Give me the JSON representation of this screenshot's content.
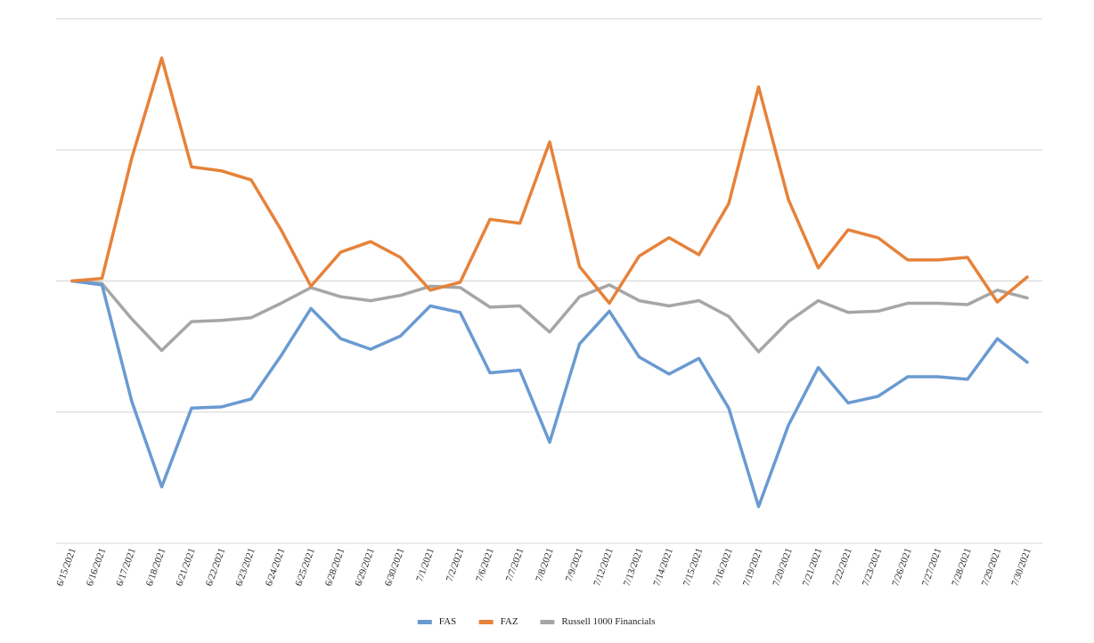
{
  "chart_data": {
    "type": "line",
    "title": "",
    "xlabel": "",
    "ylabel": "",
    "ylim": [
      -2,
      2
    ],
    "grid": true,
    "legend_position": "bottom",
    "categories": [
      "6/15/2021",
      "6/16/2021",
      "6/17/2021",
      "6/18/2021",
      "6/21/2021",
      "6/22/2021",
      "6/23/2021",
      "6/24/2021",
      "6/25/2021",
      "6/28/2021",
      "6/29/2021",
      "6/30/2021",
      "7/1/2021",
      "7/2/2021",
      "7/6/2021",
      "7/7/2021",
      "7/8/2021",
      "7/9/2021",
      "7/12/2021",
      "7/13/2021",
      "7/14/2021",
      "7/15/2021",
      "7/16/2021",
      "7/19/2021",
      "7/20/2021",
      "7/21/2021",
      "7/22/2021",
      "7/23/2021",
      "7/26/2021",
      "7/27/2021",
      "7/28/2021",
      "7/29/2021",
      "7/30/2021"
    ],
    "series": [
      {
        "name": "FAS",
        "color": "#6a9ad1",
        "values": [
          0.0,
          -0.03,
          -0.92,
          -1.57,
          -0.97,
          -0.96,
          -0.9,
          -0.57,
          -0.21,
          -0.44,
          -0.52,
          -0.42,
          -0.19,
          -0.24,
          -0.7,
          -0.68,
          -1.23,
          -0.48,
          -0.23,
          -0.58,
          -0.71,
          -0.59,
          -0.97,
          -1.72,
          -1.1,
          -0.66,
          -0.93,
          -0.88,
          -0.73,
          -0.73,
          -0.75,
          -0.44,
          -0.62
        ]
      },
      {
        "name": "FAZ",
        "color": "#e6823a",
        "values": [
          0.0,
          0.02,
          0.94,
          1.7,
          0.87,
          0.84,
          0.77,
          0.39,
          -0.04,
          0.22,
          0.3,
          0.18,
          -0.07,
          -0.01,
          0.47,
          0.44,
          1.06,
          0.11,
          -0.17,
          0.19,
          0.33,
          0.2,
          0.59,
          1.48,
          0.62,
          0.1,
          0.39,
          0.33,
          0.16,
          0.16,
          0.18,
          -0.16,
          0.03
        ]
      },
      {
        "name": "Russell 1000 Financials",
        "color": "#a6a6a6",
        "values": [
          0.0,
          -0.02,
          -0.29,
          -0.53,
          -0.31,
          -0.3,
          -0.28,
          -0.17,
          -0.05,
          -0.12,
          -0.15,
          -0.11,
          -0.04,
          -0.05,
          -0.2,
          -0.19,
          -0.39,
          -0.12,
          -0.03,
          -0.15,
          -0.19,
          -0.15,
          -0.27,
          -0.54,
          -0.31,
          -0.15,
          -0.24,
          -0.23,
          -0.17,
          -0.17,
          -0.18,
          -0.07,
          -0.13
        ]
      }
    ]
  }
}
